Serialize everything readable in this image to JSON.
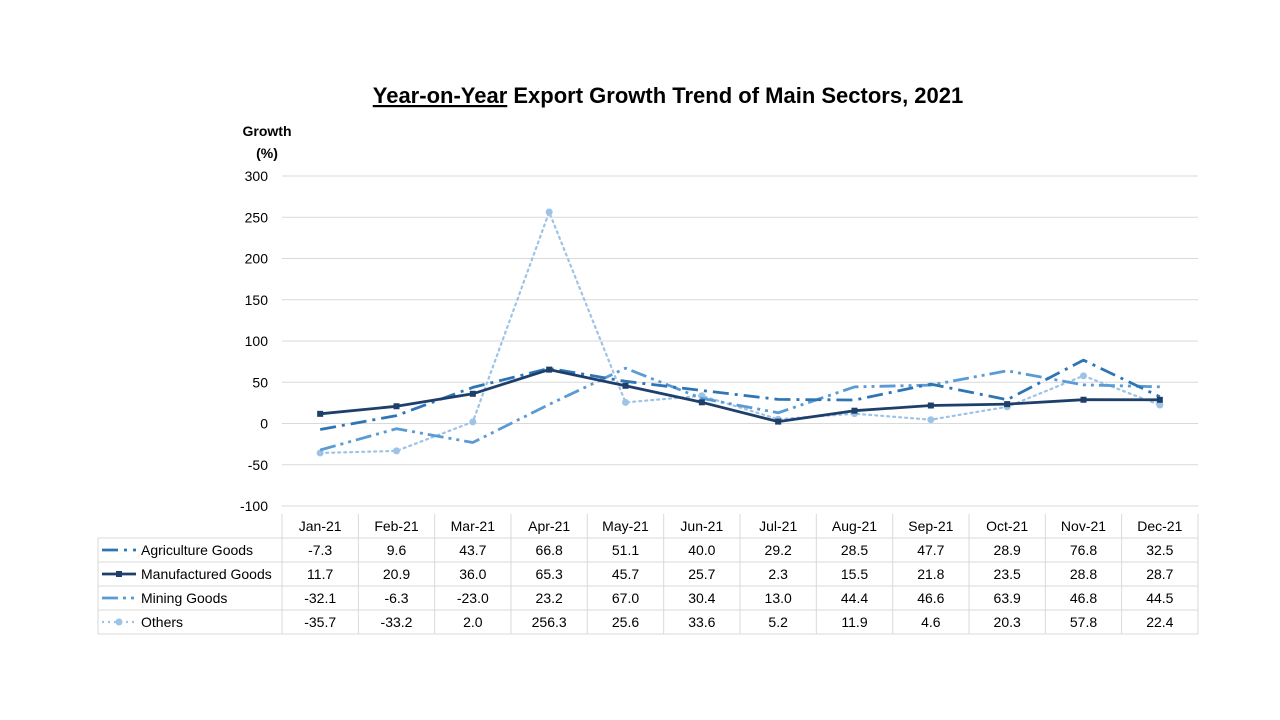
{
  "chart_data": {
    "type": "line",
    "title_underlined": "Year-on-Year",
    "title_rest": " Export Growth Trend of Main Sectors, 2021",
    "ylabel_line1": "Growth",
    "ylabel_line2": "(%)",
    "xlabel": "",
    "ylim": [
      -100,
      300
    ],
    "ytick_step": 50,
    "grid": true,
    "categories": [
      "Jan-21",
      "Feb-21",
      "Mar-21",
      "Apr-21",
      "May-21",
      "Jun-21",
      "Jul-21",
      "Aug-21",
      "Sep-21",
      "Oct-21",
      "Nov-21",
      "Dec-21"
    ],
    "series": [
      {
        "name": "Agriculture Goods",
        "style": "dash-dot",
        "marker": "none",
        "color": "#2E75B6",
        "values": [
          -7.3,
          9.6,
          43.7,
          66.8,
          51.1,
          40.0,
          29.2,
          28.5,
          47.7,
          28.9,
          76.8,
          32.5
        ],
        "labels": [
          "-7.3",
          "9.6",
          "43.7",
          "66.8",
          "51.1",
          "40.0",
          "29.2",
          "28.5",
          "47.7",
          "28.9",
          "76.8",
          "32.5"
        ]
      },
      {
        "name": "Manufactured Goods",
        "style": "solid",
        "marker": "square",
        "color": "#1F3F6B",
        "values": [
          11.7,
          20.9,
          36.0,
          65.3,
          45.7,
          25.7,
          2.3,
          15.5,
          21.8,
          23.5,
          28.8,
          28.7
        ],
        "labels": [
          "11.7",
          "20.9",
          "36.0",
          "65.3",
          "45.7",
          "25.7",
          "2.3",
          "15.5",
          "21.8",
          "23.5",
          "28.8",
          "28.7"
        ]
      },
      {
        "name": "Mining Goods",
        "style": "dash-dot-dot",
        "marker": "none",
        "color": "#5B9BD5",
        "values": [
          -32.1,
          -6.3,
          -23.0,
          23.2,
          67.0,
          30.4,
          13.0,
          44.4,
          46.6,
          63.9,
          46.8,
          44.5
        ],
        "labels": [
          "-32.1",
          "-6.3",
          "-23.0",
          "23.2",
          "67.0",
          "30.4",
          "13.0",
          "44.4",
          "46.6",
          "63.9",
          "46.8",
          "44.5"
        ]
      },
      {
        "name": "Others",
        "style": "dotted",
        "marker": "circle",
        "color": "#9DC3E6",
        "values": [
          -35.7,
          -33.2,
          2.0,
          256.3,
          25.6,
          33.6,
          5.2,
          11.9,
          4.6,
          20.3,
          57.8,
          22.4
        ],
        "labels": [
          "-35.7",
          "-33.2",
          "2.0",
          "256.3",
          "25.6",
          "33.6",
          "5.2",
          "11.9",
          "4.6",
          "20.3",
          "57.8",
          "22.4"
        ]
      }
    ]
  }
}
